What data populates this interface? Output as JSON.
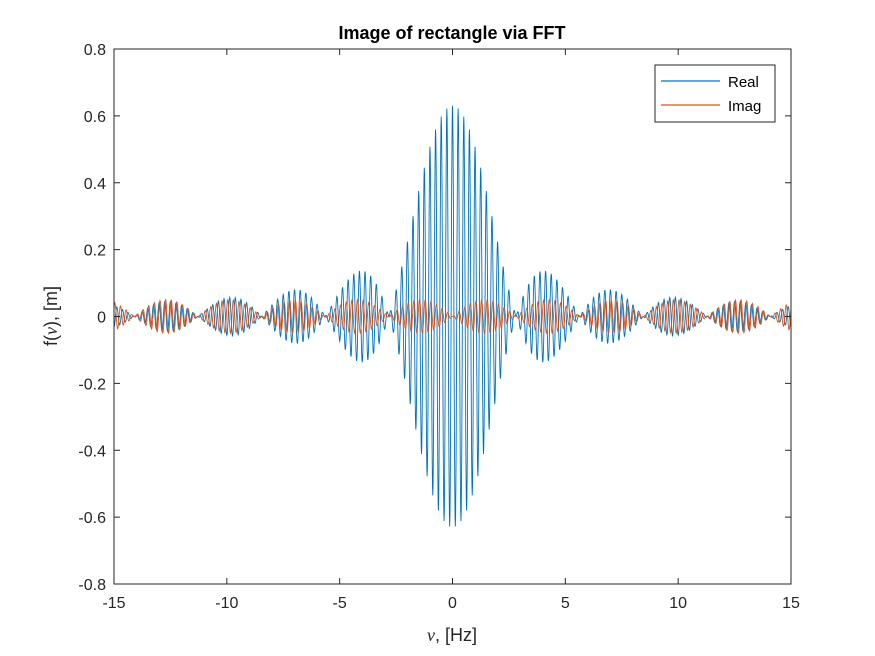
{
  "chart_data": {
    "type": "line",
    "title": "Image of rectangle via FFT",
    "xlabel_symbol": "ν",
    "xlabel_rest": ", [Hz]",
    "ylabel_pre": "f(",
    "ylabel_symbol": "ν",
    "ylabel_post": "), [m]",
    "xlim": [
      -15,
      15
    ],
    "ylim": [
      -0.8,
      0.8
    ],
    "xticks": [
      -15,
      -10,
      -5,
      0,
      5,
      10,
      15
    ],
    "xtick_labels": [
      "-15",
      "-10",
      "-5",
      "0",
      "5",
      "10",
      "15"
    ],
    "yticks": [
      -0.8,
      -0.6,
      -0.4,
      -0.2,
      0,
      0.2,
      0.4,
      0.6,
      0.8
    ],
    "ytick_labels": [
      "-0.8",
      "-0.6",
      "-0.4",
      "-0.2",
      "0",
      "0.2",
      "0.4",
      "0.6",
      "0.8"
    ],
    "grid": false,
    "legend_position": "top-right",
    "series": [
      {
        "name": "Real",
        "color": "#0072BD",
        "peak_amplitude": 0.63,
        "lobe_zeros_hz": [
          -14.1,
          -11.3,
          -8.4,
          -5.6,
          -2.8,
          2.8,
          5.6,
          8.4,
          11.3,
          14.1
        ],
        "oscillation_frequency_per_hz": 4.0
      },
      {
        "name": "Imag",
        "color": "#D95319",
        "peak_amplitude": 0.05,
        "lobe_zeros_hz": [
          -14.1,
          -11.3,
          -8.4,
          -5.6,
          -2.8,
          0,
          2.8,
          5.6,
          8.4,
          11.3,
          14.1
        ],
        "oscillation_frequency_per_hz": 4.0
      }
    ]
  }
}
